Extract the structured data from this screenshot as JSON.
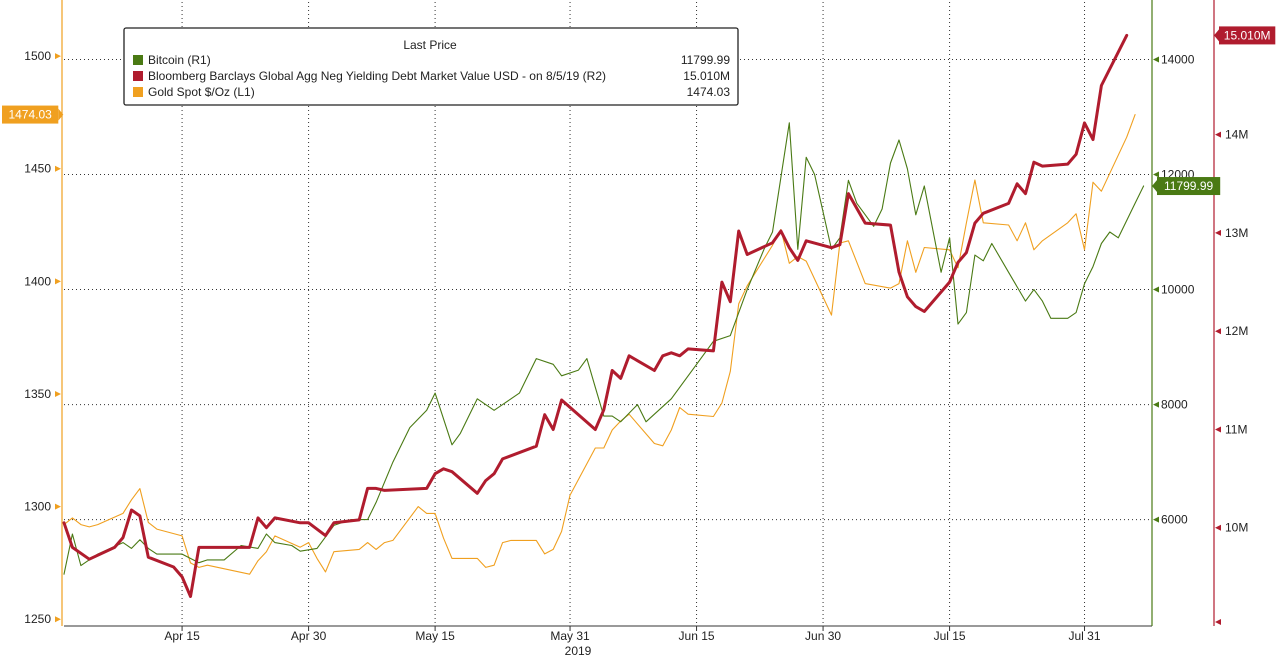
{
  "chart_data": {
    "type": "line",
    "xlabel": "2019",
    "x_ticks": [
      "Apr 15",
      "Apr 30",
      "May 15",
      "May 31",
      "Jun 15",
      "Jun 30",
      "Jul 15",
      "Jul 31"
    ],
    "x_range": [
      "2019-04-01",
      "2019-08-08"
    ],
    "grid": true,
    "legend_position": "top-left",
    "legend_header": "Last Price",
    "axes": {
      "left": {
        "label": "L1",
        "ticks": [
          1250,
          1300,
          1350,
          1400,
          1450,
          1500
        ],
        "range": [
          1247,
          1524
        ],
        "color": "#f0a020"
      },
      "right1": {
        "label": "R1",
        "ticks": [
          6000,
          8000,
          10000,
          12000,
          14000
        ],
        "tick_labels": [
          "6000",
          "8000",
          "10000",
          "12000",
          "14000"
        ],
        "range": [
          4150,
          15000
        ],
        "color": "#4a7a14"
      },
      "right2": {
        "label": "R2",
        "ticks": [
          10,
          11,
          12,
          13,
          14
        ],
        "tick_labels": [
          "10M",
          "11M",
          "12M",
          "13M",
          "14M"
        ],
        "range": [
          9.0,
          15.35
        ],
        "unit": "M",
        "color": "#b01c2e"
      }
    },
    "series": [
      {
        "name": "Bitcoin  (R1)",
        "axis": "right1",
        "color": "#4a7a14",
        "last_label": "11799.99",
        "last_value": "11799.99",
        "points": [
          [
            "2019-04-01",
            5050
          ],
          [
            "2019-04-02",
            5750
          ],
          [
            "2019-04-03",
            5200
          ],
          [
            "2019-04-05",
            5400
          ],
          [
            "2019-04-08",
            5600
          ],
          [
            "2019-04-09",
            5500
          ],
          [
            "2019-04-10",
            5650
          ],
          [
            "2019-04-11",
            5500
          ],
          [
            "2019-04-12",
            5400
          ],
          [
            "2019-04-15",
            5400
          ],
          [
            "2019-04-17",
            5250
          ],
          [
            "2019-04-18",
            5300
          ],
          [
            "2019-04-20",
            5300
          ],
          [
            "2019-04-22",
            5550
          ],
          [
            "2019-04-24",
            5500
          ],
          [
            "2019-04-25",
            5750
          ],
          [
            "2019-04-26",
            5600
          ],
          [
            "2019-04-28",
            5550
          ],
          [
            "2019-04-29",
            5450
          ],
          [
            "2019-05-01",
            5500
          ],
          [
            "2019-05-02",
            5700
          ],
          [
            "2019-05-03",
            5900
          ],
          [
            "2019-05-05",
            6000
          ],
          [
            "2019-05-07",
            6000
          ],
          [
            "2019-05-08",
            6300
          ],
          [
            "2019-05-10",
            7000
          ],
          [
            "2019-05-12",
            7600
          ],
          [
            "2019-05-14",
            7900
          ],
          [
            "2019-05-15",
            8200
          ],
          [
            "2019-05-17",
            7300
          ],
          [
            "2019-05-18",
            7500
          ],
          [
            "2019-05-20",
            8100
          ],
          [
            "2019-05-22",
            7900
          ],
          [
            "2019-05-23",
            8000
          ],
          [
            "2019-05-24",
            8100
          ],
          [
            "2019-05-25",
            8200
          ],
          [
            "2019-05-27",
            8800
          ],
          [
            "2019-05-29",
            8700
          ],
          [
            "2019-05-30",
            8500
          ],
          [
            "2019-06-01",
            8600
          ],
          [
            "2019-06-02",
            8800
          ],
          [
            "2019-06-03",
            8300
          ],
          [
            "2019-06-04",
            7800
          ],
          [
            "2019-06-05",
            7800
          ],
          [
            "2019-06-06",
            7700
          ],
          [
            "2019-06-08",
            8000
          ],
          [
            "2019-06-09",
            7700
          ],
          [
            "2019-06-12",
            8100
          ],
          [
            "2019-06-15",
            8700
          ],
          [
            "2019-06-17",
            9100
          ],
          [
            "2019-06-19",
            9200
          ],
          [
            "2019-06-21",
            10000
          ],
          [
            "2019-06-23",
            10700
          ],
          [
            "2019-06-24",
            11000
          ],
          [
            "2019-06-26",
            12900
          ],
          [
            "2019-06-27",
            10700
          ],
          [
            "2019-06-28",
            12300
          ],
          [
            "2019-06-29",
            12000
          ],
          [
            "2019-07-01",
            10700
          ],
          [
            "2019-07-02",
            10900
          ],
          [
            "2019-07-03",
            11900
          ],
          [
            "2019-07-04",
            11500
          ],
          [
            "2019-07-06",
            11100
          ],
          [
            "2019-07-07",
            11400
          ],
          [
            "2019-07-08",
            12200
          ],
          [
            "2019-07-09",
            12600
          ],
          [
            "2019-07-10",
            12100
          ],
          [
            "2019-07-11",
            11300
          ],
          [
            "2019-07-12",
            11800
          ],
          [
            "2019-07-14",
            10300
          ],
          [
            "2019-07-15",
            10900
          ],
          [
            "2019-07-16",
            9400
          ],
          [
            "2019-07-17",
            9600
          ],
          [
            "2019-07-18",
            10600
          ],
          [
            "2019-07-19",
            10500
          ],
          [
            "2019-07-20",
            10800
          ],
          [
            "2019-07-22",
            10300
          ],
          [
            "2019-07-24",
            9800
          ],
          [
            "2019-07-25",
            10000
          ],
          [
            "2019-07-26",
            9800
          ],
          [
            "2019-07-27",
            9500
          ],
          [
            "2019-07-29",
            9500
          ],
          [
            "2019-07-30",
            9600
          ],
          [
            "2019-07-31",
            10100
          ],
          [
            "2019-08-01",
            10400
          ],
          [
            "2019-08-02",
            10800
          ],
          [
            "2019-08-03",
            11000
          ],
          [
            "2019-08-04",
            10900
          ],
          [
            "2019-08-06",
            11500
          ],
          [
            "2019-08-07",
            11800
          ]
        ]
      },
      {
        "name": "Bloomberg Barclays Global Agg Neg Yielding Debt Market Value USD -  on 8/5/19  (R2)",
        "axis": "right2",
        "color": "#b01c2e",
        "last_label": "15.010M",
        "last_value": "15.010M",
        "points": [
          [
            "2019-04-01",
            10.05
          ],
          [
            "2019-04-02",
            9.8
          ],
          [
            "2019-04-04",
            9.68
          ],
          [
            "2019-04-07",
            9.8
          ],
          [
            "2019-04-08",
            9.9
          ],
          [
            "2019-04-09",
            10.18
          ],
          [
            "2019-04-10",
            10.12
          ],
          [
            "2019-04-11",
            9.7
          ],
          [
            "2019-04-14",
            9.6
          ],
          [
            "2019-04-15",
            9.5
          ],
          [
            "2019-04-16",
            9.3
          ],
          [
            "2019-04-17",
            9.8
          ],
          [
            "2019-04-23",
            9.8
          ],
          [
            "2019-04-24",
            10.1
          ],
          [
            "2019-04-25",
            10.0
          ],
          [
            "2019-04-26",
            10.1
          ],
          [
            "2019-04-29",
            10.05
          ],
          [
            "2019-04-30",
            10.05
          ],
          [
            "2019-05-02",
            9.92
          ],
          [
            "2019-05-03",
            10.05
          ],
          [
            "2019-05-06",
            10.08
          ],
          [
            "2019-05-07",
            10.4
          ],
          [
            "2019-05-08",
            10.4
          ],
          [
            "2019-05-09",
            10.38
          ],
          [
            "2019-05-14",
            10.4
          ],
          [
            "2019-05-15",
            10.55
          ],
          [
            "2019-05-16",
            10.6
          ],
          [
            "2019-05-17",
            10.57
          ],
          [
            "2019-05-20",
            10.35
          ],
          [
            "2019-05-21",
            10.48
          ],
          [
            "2019-05-22",
            10.55
          ],
          [
            "2019-05-23",
            10.7
          ],
          [
            "2019-05-27",
            10.83
          ],
          [
            "2019-05-28",
            11.15
          ],
          [
            "2019-05-29",
            11.0
          ],
          [
            "2019-05-30",
            11.3
          ],
          [
            "2019-06-03",
            11.0
          ],
          [
            "2019-06-04",
            11.2
          ],
          [
            "2019-06-05",
            11.6
          ],
          [
            "2019-06-06",
            11.52
          ],
          [
            "2019-06-07",
            11.75
          ],
          [
            "2019-06-10",
            11.6
          ],
          [
            "2019-06-11",
            11.75
          ],
          [
            "2019-06-12",
            11.78
          ],
          [
            "2019-06-13",
            11.75
          ],
          [
            "2019-06-14",
            11.82
          ],
          [
            "2019-06-17",
            11.8
          ],
          [
            "2019-06-18",
            12.5
          ],
          [
            "2019-06-19",
            12.3
          ],
          [
            "2019-06-20",
            13.02
          ],
          [
            "2019-06-21",
            12.78
          ],
          [
            "2019-06-24",
            12.9
          ],
          [
            "2019-06-25",
            13.02
          ],
          [
            "2019-06-26",
            12.85
          ],
          [
            "2019-06-27",
            12.72
          ],
          [
            "2019-06-28",
            12.92
          ],
          [
            "2019-07-01",
            12.85
          ],
          [
            "2019-07-02",
            12.88
          ],
          [
            "2019-07-03",
            13.4
          ],
          [
            "2019-07-05",
            13.1
          ],
          [
            "2019-07-08",
            13.08
          ],
          [
            "2019-07-09",
            12.6
          ],
          [
            "2019-07-10",
            12.35
          ],
          [
            "2019-07-11",
            12.25
          ],
          [
            "2019-07-12",
            12.2
          ],
          [
            "2019-07-15",
            12.5
          ],
          [
            "2019-07-16",
            12.7
          ],
          [
            "2019-07-17",
            12.8
          ],
          [
            "2019-07-18",
            13.1
          ],
          [
            "2019-07-19",
            13.2
          ],
          [
            "2019-07-22",
            13.3
          ],
          [
            "2019-07-23",
            13.5
          ],
          [
            "2019-07-24",
            13.4
          ],
          [
            "2019-07-25",
            13.72
          ],
          [
            "2019-07-26",
            13.68
          ],
          [
            "2019-07-29",
            13.7
          ],
          [
            "2019-07-30",
            13.8
          ],
          [
            "2019-07-31",
            14.12
          ],
          [
            "2019-08-01",
            13.95
          ],
          [
            "2019-08-02",
            14.5
          ],
          [
            "2019-08-05",
            15.01
          ]
        ]
      },
      {
        "name": "Gold Spot $/Oz  (L1)",
        "axis": "left",
        "color": "#f0a020",
        "last_label": "1474.03",
        "last_value": "1474.03",
        "points": [
          [
            "2019-04-01",
            1292
          ],
          [
            "2019-04-02",
            1295
          ],
          [
            "2019-04-03",
            1292
          ],
          [
            "2019-04-04",
            1291
          ],
          [
            "2019-04-05",
            1292
          ],
          [
            "2019-04-08",
            1297
          ],
          [
            "2019-04-09",
            1303
          ],
          [
            "2019-04-10",
            1308
          ],
          [
            "2019-04-11",
            1293
          ],
          [
            "2019-04-12",
            1290
          ],
          [
            "2019-04-15",
            1287
          ],
          [
            "2019-04-16",
            1275
          ],
          [
            "2019-04-17",
            1273
          ],
          [
            "2019-04-18",
            1274
          ],
          [
            "2019-04-23",
            1270
          ],
          [
            "2019-04-24",
            1276
          ],
          [
            "2019-04-25",
            1280
          ],
          [
            "2019-04-26",
            1287
          ],
          [
            "2019-04-29",
            1282
          ],
          [
            "2019-04-30",
            1284
          ],
          [
            "2019-05-01",
            1277
          ],
          [
            "2019-05-02",
            1271
          ],
          [
            "2019-05-03",
            1280
          ],
          [
            "2019-05-06",
            1281
          ],
          [
            "2019-05-07",
            1284
          ],
          [
            "2019-05-08",
            1281
          ],
          [
            "2019-05-09",
            1284
          ],
          [
            "2019-05-10",
            1285
          ],
          [
            "2019-05-13",
            1300
          ],
          [
            "2019-05-14",
            1297
          ],
          [
            "2019-05-15",
            1297
          ],
          [
            "2019-05-16",
            1286
          ],
          [
            "2019-05-17",
            1277
          ],
          [
            "2019-05-20",
            1277
          ],
          [
            "2019-05-21",
            1273
          ],
          [
            "2019-05-22",
            1274
          ],
          [
            "2019-05-23",
            1284
          ],
          [
            "2019-05-24",
            1285
          ],
          [
            "2019-05-27",
            1285
          ],
          [
            "2019-05-28",
            1279
          ],
          [
            "2019-05-29",
            1281
          ],
          [
            "2019-05-30",
            1289
          ],
          [
            "2019-05-31",
            1305
          ],
          [
            "2019-06-03",
            1326
          ],
          [
            "2019-06-04",
            1326
          ],
          [
            "2019-06-05",
            1334
          ],
          [
            "2019-06-06",
            1338
          ],
          [
            "2019-06-07",
            1341
          ],
          [
            "2019-06-10",
            1328
          ],
          [
            "2019-06-11",
            1327
          ],
          [
            "2019-06-12",
            1334
          ],
          [
            "2019-06-13",
            1344
          ],
          [
            "2019-06-14",
            1341
          ],
          [
            "2019-06-17",
            1340
          ],
          [
            "2019-06-18",
            1346
          ],
          [
            "2019-06-19",
            1360
          ],
          [
            "2019-06-20",
            1390
          ],
          [
            "2019-06-21",
            1398
          ],
          [
            "2019-06-24",
            1416
          ],
          [
            "2019-06-25",
            1423
          ],
          [
            "2019-06-26",
            1408
          ],
          [
            "2019-06-27",
            1411
          ],
          [
            "2019-06-28",
            1409
          ],
          [
            "2019-07-01",
            1385
          ],
          [
            "2019-07-02",
            1417
          ],
          [
            "2019-07-03",
            1418
          ],
          [
            "2019-07-05",
            1399
          ],
          [
            "2019-07-08",
            1397
          ],
          [
            "2019-07-09",
            1399
          ],
          [
            "2019-07-10",
            1418
          ],
          [
            "2019-07-11",
            1404
          ],
          [
            "2019-07-12",
            1415
          ],
          [
            "2019-07-15",
            1414
          ],
          [
            "2019-07-16",
            1406
          ],
          [
            "2019-07-17",
            1426
          ],
          [
            "2019-07-18",
            1445
          ],
          [
            "2019-07-19",
            1426
          ],
          [
            "2019-07-22",
            1425
          ],
          [
            "2019-07-23",
            1418
          ],
          [
            "2019-07-24",
            1426
          ],
          [
            "2019-07-25",
            1414
          ],
          [
            "2019-07-26",
            1418
          ],
          [
            "2019-07-29",
            1426
          ],
          [
            "2019-07-30",
            1430
          ],
          [
            "2019-07-31",
            1414
          ],
          [
            "2019-08-01",
            1444
          ],
          [
            "2019-08-02",
            1440
          ],
          [
            "2019-08-05",
            1464
          ],
          [
            "2019-08-06",
            1474.03
          ]
        ]
      }
    ]
  }
}
